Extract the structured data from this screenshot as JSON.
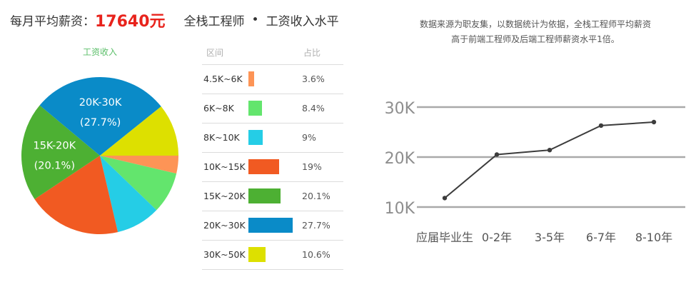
{
  "header": {
    "salary_label": "每月平均薪资：",
    "salary_value": "17640元",
    "job_title": "全栈工程师",
    "separator": "•",
    "section_title": "工资收入水平"
  },
  "table": {
    "col_range": "区间",
    "col_share": "占比",
    "rows": [
      {
        "range": "4.5K~6K",
        "pct": "3.6%"
      },
      {
        "range": "6K~8K",
        "pct": "8.4%"
      },
      {
        "range": "8K~10K",
        "pct": "9%"
      },
      {
        "range": "10K~15K",
        "pct": "19%"
      },
      {
        "range": "15K~20K",
        "pct": "20.1%"
      },
      {
        "range": "20K~30K",
        "pct": "27.7%"
      },
      {
        "range": "30K~50K",
        "pct": "10.6%"
      }
    ]
  },
  "note": {
    "line1": "数据来源为职友集，以数据统计为依据，全栈工程师平均薪资",
    "line2": "高于前端工程师及后端工程师薪资水平1倍。"
  },
  "chart_data": [
    {
      "type": "pie",
      "title": "工资收入",
      "categories": [
        "4.5K~6K",
        "6K~8K",
        "8K~10K",
        "10K~15K",
        "15K~20K",
        "20K~30K",
        "30K~50K"
      ],
      "values": [
        3.6,
        8.4,
        9,
        19,
        20.1,
        27.7,
        10.6
      ],
      "colors": [
        "#fd9456",
        "#63e56d",
        "#25cde6",
        "#f15a22",
        "#4db033",
        "#0a8bc8",
        "#dde000"
      ],
      "annotations": [
        {
          "slice": "15K~20K",
          "name": "15K-20K",
          "value": "(20.1%)"
        },
        {
          "slice": "20K~30K",
          "name": "20K-30K",
          "value": "(27.7%)"
        }
      ]
    },
    {
      "type": "line",
      "categories": [
        "应届毕业生",
        "0-2年",
        "3-5年",
        "6-7年",
        "8-10年"
      ],
      "values": [
        11.8,
        20.5,
        21.4,
        26.3,
        27.0
      ],
      "yticks": [
        "10K",
        "20K",
        "30K"
      ],
      "ylim": [
        10,
        30
      ],
      "grid": true,
      "line_color": "#3c3c3c",
      "grid_color": "#a9a9a9"
    }
  ]
}
